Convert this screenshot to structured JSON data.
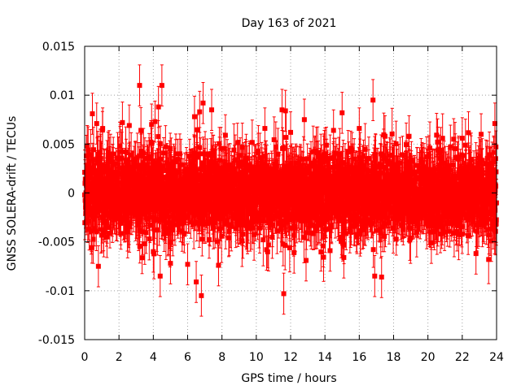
{
  "chart_data": {
    "type": "scatter",
    "title": "Day 163 of 2021",
    "xlabel": "GPS time / hours",
    "ylabel": "GNSS SOLERA-drift / TECUs",
    "xlim": [
      0,
      24
    ],
    "ylim": [
      -0.015,
      0.015
    ],
    "x_ticks": [
      "0",
      "2",
      "4",
      "6",
      "8",
      "10",
      "12",
      "14",
      "16",
      "18",
      "20",
      "22",
      "24"
    ],
    "y_ticks": [
      "-0.015",
      "-0.01",
      "-0.005",
      "0",
      "0.005",
      "0.01",
      "0.015"
    ],
    "grid": true,
    "marker": "square",
    "color": "#ff0000",
    "error_bars": true,
    "typical_error": 0.002,
    "bulk_spread": 0.0025,
    "n_points": 2880,
    "series": [
      {
        "points": [
          [
            0.0,
            -0.0002
          ],
          [
            0.05,
            -0.0015
          ],
          [
            0.1,
            0.0038
          ],
          [
            0.15,
            0.0048
          ],
          [
            0.45,
            0.0081
          ],
          [
            0.7,
            0.0071
          ],
          [
            0.8,
            -0.0075
          ],
          [
            1.05,
            0.0066
          ],
          [
            1.3,
            -0.0045
          ],
          [
            2.2,
            0.0072
          ],
          [
            2.6,
            0.0069
          ],
          [
            3.2,
            0.011
          ],
          [
            3.5,
            -0.0052
          ],
          [
            3.9,
            0.007
          ],
          [
            4.0,
            -0.006
          ],
          [
            4.1,
            0.0073
          ],
          [
            4.3,
            0.0088
          ],
          [
            4.4,
            -0.0085
          ],
          [
            4.5,
            0.011
          ],
          [
            5.0,
            -0.0072
          ],
          [
            6.0,
            -0.0073
          ],
          [
            6.4,
            0.0078
          ],
          [
            6.5,
            -0.0091
          ],
          [
            6.7,
            0.0083
          ],
          [
            6.8,
            -0.0105
          ],
          [
            6.9,
            0.0092
          ],
          [
            7.4,
            0.0085
          ],
          [
            7.8,
            -0.0074
          ],
          [
            8.2,
            0.0059
          ],
          [
            10.5,
            0.0066
          ],
          [
            10.6,
            -0.0058
          ],
          [
            11.5,
            0.0085
          ],
          [
            11.6,
            -0.0103
          ],
          [
            11.7,
            0.0084
          ],
          [
            12.0,
            0.0062
          ],
          [
            12.2,
            -0.0061
          ],
          [
            12.8,
            0.0075
          ],
          [
            12.9,
            -0.0069
          ],
          [
            14.3,
            -0.0059
          ],
          [
            14.5,
            0.0064
          ],
          [
            15.0,
            0.0082
          ],
          [
            15.1,
            -0.0066
          ],
          [
            16.0,
            0.0066
          ],
          [
            16.8,
            0.0095
          ],
          [
            16.9,
            -0.0085
          ],
          [
            17.3,
            -0.0086
          ],
          [
            17.5,
            0.0058
          ],
          [
            18.9,
            0.0058
          ],
          [
            20.2,
            -0.0051
          ],
          [
            21.5,
            0.0055
          ],
          [
            22.0,
            0.0056
          ],
          [
            22.8,
            -0.0062
          ],
          [
            23.1,
            0.006
          ],
          [
            23.7,
            -0.0049
          ],
          [
            23.9,
            0.0071
          ]
        ]
      }
    ]
  }
}
